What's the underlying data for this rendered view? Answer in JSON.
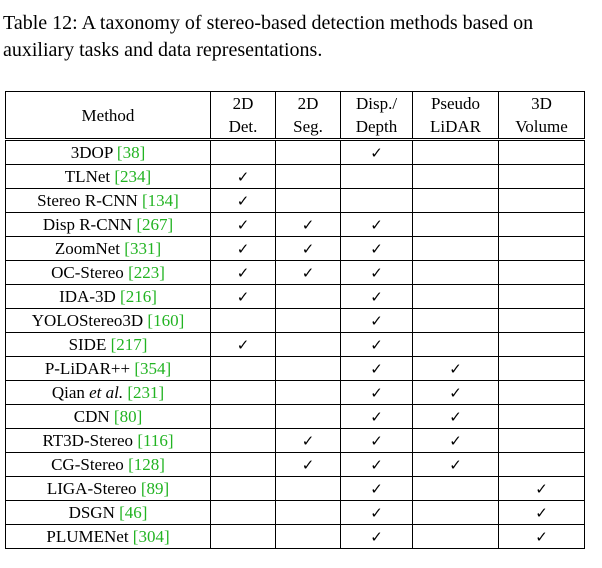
{
  "caption": "Table 12: A taxonomy of stereo-based detection methods based on auxiliary tasks and data representations.",
  "check_glyph": "✓",
  "cite_color": "#22b422",
  "columns": [
    {
      "line1": "Method",
      "line2": ""
    },
    {
      "line1": "2D",
      "line2": "Det."
    },
    {
      "line1": "2D",
      "line2": "Seg."
    },
    {
      "line1": "Disp./",
      "line2": "Depth"
    },
    {
      "line1": "Pseudo",
      "line2": "LiDAR"
    },
    {
      "line1": "3D",
      "line2": "Volume"
    }
  ],
  "rows": [
    {
      "name": "3DOP",
      "name_italic": "",
      "ref": "[38]",
      "det": false,
      "seg": false,
      "disp": true,
      "pseudo": false,
      "vol": false
    },
    {
      "name": "TLNet",
      "name_italic": "",
      "ref": "[234]",
      "det": true,
      "seg": false,
      "disp": false,
      "pseudo": false,
      "vol": false
    },
    {
      "name": "Stereo R-CNN",
      "name_italic": "",
      "ref": "[134]",
      "det": true,
      "seg": false,
      "disp": false,
      "pseudo": false,
      "vol": false
    },
    {
      "name": "Disp R-CNN",
      "name_italic": "",
      "ref": "[267]",
      "det": true,
      "seg": true,
      "disp": true,
      "pseudo": false,
      "vol": false
    },
    {
      "name": "ZoomNet",
      "name_italic": "",
      "ref": "[331]",
      "det": true,
      "seg": true,
      "disp": true,
      "pseudo": false,
      "vol": false
    },
    {
      "name": "OC-Stereo",
      "name_italic": "",
      "ref": "[223]",
      "det": true,
      "seg": true,
      "disp": true,
      "pseudo": false,
      "vol": false
    },
    {
      "name": "IDA-3D",
      "name_italic": "",
      "ref": "[216]",
      "det": true,
      "seg": false,
      "disp": true,
      "pseudo": false,
      "vol": false
    },
    {
      "name": "YOLOStereo3D",
      "name_italic": "",
      "ref": "[160]",
      "det": false,
      "seg": false,
      "disp": true,
      "pseudo": false,
      "vol": false
    },
    {
      "name": "SIDE",
      "name_italic": "",
      "ref": "[217]",
      "det": true,
      "seg": false,
      "disp": true,
      "pseudo": false,
      "vol": false
    },
    {
      "name": "P-LiDAR++",
      "name_italic": "",
      "ref": "[354]",
      "det": false,
      "seg": false,
      "disp": true,
      "pseudo": true,
      "vol": false
    },
    {
      "name": "Qian",
      "name_italic": "et al.",
      "ref": "[231]",
      "det": false,
      "seg": false,
      "disp": true,
      "pseudo": true,
      "vol": false
    },
    {
      "name": "CDN",
      "name_italic": "",
      "ref": "[80]",
      "det": false,
      "seg": false,
      "disp": true,
      "pseudo": true,
      "vol": false
    },
    {
      "name": "RT3D-Stereo",
      "name_italic": "",
      "ref": "[116]",
      "det": false,
      "seg": true,
      "disp": true,
      "pseudo": true,
      "vol": false
    },
    {
      "name": "CG-Stereo",
      "name_italic": "",
      "ref": "[128]",
      "det": false,
      "seg": true,
      "disp": true,
      "pseudo": true,
      "vol": false
    },
    {
      "name": "LIGA-Stereo",
      "name_italic": "",
      "ref": "[89]",
      "det": false,
      "seg": false,
      "disp": true,
      "pseudo": false,
      "vol": true
    },
    {
      "name": "DSGN",
      "name_italic": "",
      "ref": "[46]",
      "det": false,
      "seg": false,
      "disp": true,
      "pseudo": false,
      "vol": true
    },
    {
      "name": "PLUMENet",
      "name_italic": "",
      "ref": "[304]",
      "det": false,
      "seg": false,
      "disp": true,
      "pseudo": false,
      "vol": true
    }
  ]
}
